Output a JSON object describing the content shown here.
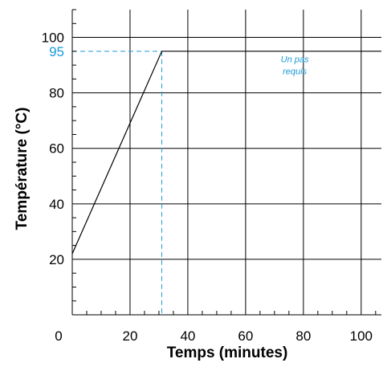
{
  "chart_data": {
    "type": "line",
    "xlabel": "Temps (minutes)",
    "ylabel": "Température (°C)",
    "xlim": [
      0,
      107
    ],
    "ylim": [
      0,
      110
    ],
    "x_ticks": [
      0,
      20,
      40,
      60,
      80,
      100
    ],
    "y_ticks": [
      20,
      40,
      60,
      80,
      100
    ],
    "grid": true,
    "series": [
      {
        "x": [
          0,
          31,
          107
        ],
        "y": [
          22,
          95,
          95
        ],
        "color": "#000000"
      }
    ],
    "reference_lines": [
      {
        "axis": "y",
        "value": 95,
        "label": "95",
        "color": "#1a9bd7",
        "style": "dashed"
      },
      {
        "axis": "x",
        "value": 31,
        "color": "#1a9bd7",
        "style": "dashed"
      }
    ],
    "annotations": [
      {
        "lines": [
          "Un pas",
          "requis"
        ],
        "x": 77,
        "y": 91,
        "color": "#1a9bd7",
        "style": "italic"
      }
    ]
  }
}
